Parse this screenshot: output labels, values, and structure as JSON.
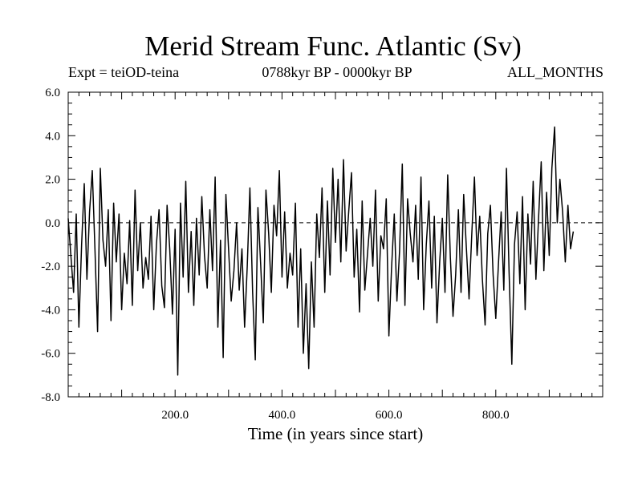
{
  "chart_data": {
    "type": "line",
    "title": "Merid Stream Func. Atlantic (Sv)",
    "annotations": {
      "left": "Expt = teiOD-teina",
      "center": "0788kyr BP - 0000kyr BP",
      "right": "ALL_MONTHS"
    },
    "xlabel": "Time (in years since start)",
    "ylabel": "",
    "xlim": [
      0,
      1000
    ],
    "ylim": [
      -8,
      6
    ],
    "xticks": [
      200,
      400,
      600,
      800
    ],
    "xtick_labels": [
      "200.0",
      "400.0",
      "600.0",
      "800.0"
    ],
    "yticks": [
      6,
      4,
      2,
      0,
      -2,
      -4,
      -6,
      -8
    ],
    "ytick_labels": [
      "6.0",
      "4.0",
      "2.0",
      "0.0",
      "-2.0",
      "-4.0",
      "-6.0",
      "-8.0"
    ],
    "zero_line": 0,
    "grid": false,
    "series": [
      {
        "name": "Merid Stream Func. Atlantic",
        "x_start": 0,
        "x_step": 5,
        "values": [
          0.2,
          -1.5,
          -3.2,
          0.4,
          -4.8,
          -1.0,
          1.8,
          -2.6,
          0.5,
          2.4,
          -1.2,
          -5.0,
          2.5,
          -0.8,
          -2.0,
          0.6,
          -4.5,
          0.9,
          -1.8,
          0.4,
          -4.0,
          -1.4,
          -2.8,
          0.1,
          -3.8,
          1.5,
          -2.2,
          0.0,
          -3.0,
          -1.6,
          -2.6,
          0.3,
          -4.0,
          -1.0,
          0.6,
          -2.9,
          -3.9,
          0.8,
          -1.2,
          -4.2,
          -0.3,
          -7.0,
          0.9,
          -2.5,
          1.9,
          -3.2,
          -0.4,
          -3.8,
          0.2,
          -2.4,
          1.2,
          -1.5,
          -3.0,
          0.6,
          -2.2,
          2.1,
          -4.8,
          -0.8,
          -6.2,
          1.3,
          -1.2,
          -3.6,
          -2.2,
          0.0,
          -3.1,
          -1.2,
          -4.8,
          -2.0,
          1.6,
          -3.2,
          -6.3,
          0.7,
          -1.9,
          -4.6,
          1.5,
          -0.5,
          -3.2,
          0.8,
          -0.6,
          2.4,
          -2.5,
          0.5,
          -3.0,
          -1.4,
          -2.4,
          0.9,
          -4.8,
          -1.2,
          -6.0,
          -2.8,
          -6.7,
          -1.8,
          -4.8,
          0.4,
          -1.6,
          1.6,
          -3.2,
          1.0,
          -2.4,
          2.5,
          -0.9,
          2.0,
          -1.8,
          2.9,
          -1.3,
          0.6,
          2.3,
          -2.5,
          -0.3,
          -4.1,
          1.0,
          -3.1,
          -1.4,
          0.2,
          -2.0,
          1.5,
          -3.6,
          -0.6,
          -1.2,
          1.1,
          -5.2,
          -2.1,
          0.4,
          -3.6,
          -1.3,
          2.7,
          -3.8,
          1.1,
          -0.5,
          -1.8,
          0.8,
          -2.6,
          2.1,
          -4.0,
          -1.0,
          1.0,
          -3.0,
          0.3,
          -4.6,
          -1.8,
          0.2,
          -3.2,
          2.2,
          -1.6,
          -4.3,
          -2.4,
          0.6,
          -3.2,
          1.3,
          -1.2,
          -3.5,
          -0.6,
          2.1,
          -1.5,
          0.3,
          -2.6,
          -4.7,
          -0.5,
          0.8,
          -2.4,
          -4.4,
          -1.9,
          0.5,
          -3.1,
          2.5,
          -2.3,
          -6.5,
          -1.0,
          0.5,
          -2.8,
          1.2,
          -4.0,
          0.4,
          -1.9,
          1.9,
          -2.6,
          0.2,
          2.8,
          -2.2,
          1.4,
          -1.5,
          2.5,
          4.4,
          0.0,
          2.0,
          0.5,
          -1.8,
          0.8,
          -1.2,
          -0.4
        ]
      }
    ]
  }
}
